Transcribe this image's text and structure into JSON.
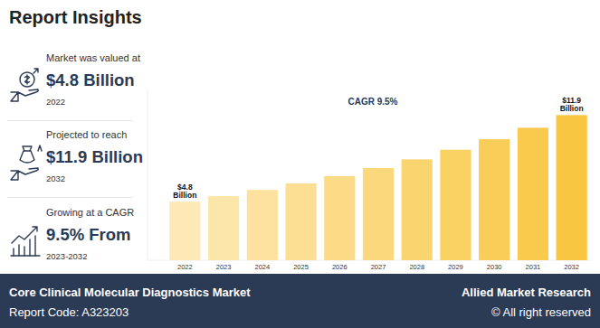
{
  "header": {
    "title": "Report Insights"
  },
  "insights": [
    {
      "label": "Market was valued at",
      "value": "$4.8 Billion",
      "period": "2022"
    },
    {
      "label": "Projected to reach",
      "value": "$11.9 Billion",
      "period": "2032"
    },
    {
      "label": "Growing at a CAGR",
      "value": "9.5% From",
      "period": "2023-2032"
    }
  ],
  "chart_data": {
    "type": "bar",
    "title": "CAGR 9.5%",
    "categories": [
      "2022",
      "2023",
      "2024",
      "2025",
      "2026",
      "2027",
      "2028",
      "2029",
      "2030",
      "2031",
      "2032"
    ],
    "values": [
      4.8,
      5.26,
      5.76,
      6.3,
      6.9,
      7.56,
      8.27,
      9.06,
      9.92,
      10.86,
      11.9
    ],
    "value_labels": [
      "$4.8 Billion",
      null,
      null,
      null,
      null,
      null,
      null,
      null,
      null,
      null,
      "$11.9 Billion"
    ],
    "colors": [
      "#fde9b5",
      "#fce6a9",
      "#fce29e",
      "#fcdf92",
      "#fbdb86",
      "#fbd87b",
      "#fad46f",
      "#fad163",
      "#f9cd58",
      "#f9ca4c",
      "#f8c640"
    ],
    "ylim": [
      0,
      14
    ],
    "tick_labels": "x",
    "grid": false
  },
  "footer": {
    "title": "Core Clinical Molecular Diagnostics Market",
    "code": "Report Code: A323203",
    "brand": "Allied Market Research",
    "rights": "© All right reserved"
  }
}
